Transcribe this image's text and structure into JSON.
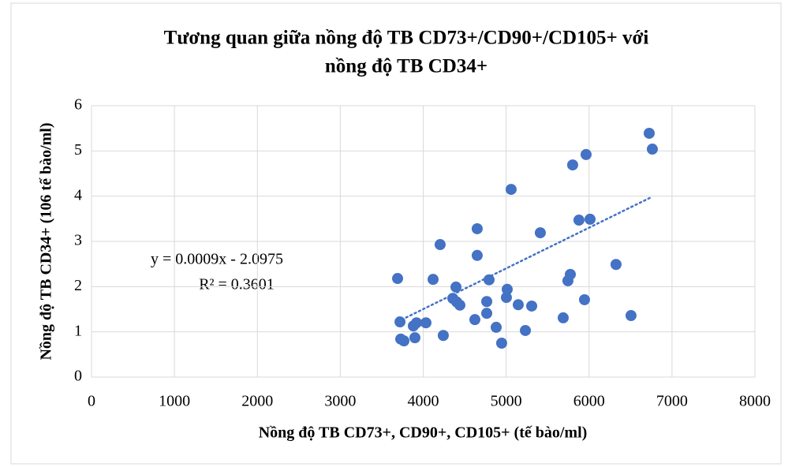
{
  "chart_data": {
    "type": "scatter",
    "title": [
      "Tương quan giữa nồng độ TB CD73+/CD90+/CD105+ với",
      "nồng độ TB CD34+"
    ],
    "x_label": "Nồng độ TB CD73+, CD90+, CD105+ (tế bào/ml)",
    "y_label": "Nồng độ TB CD34+ (106 tế bào/ml)",
    "annotation": [
      "y = 0.0009x - 2.0975",
      "R² = 0.3601"
    ],
    "trendline": {
      "slope": 0.0009,
      "intercept": -2.0975
    },
    "color": "#4472c4",
    "grid": true,
    "xlim": [
      0,
      8000
    ],
    "xticks": [
      0,
      1000,
      2000,
      3000,
      4000,
      5000,
      6000,
      7000,
      8000
    ],
    "ylim": [
      0,
      6
    ],
    "yticks": [
      0,
      1,
      2,
      3,
      4,
      5,
      6
    ],
    "x": [
      3691,
      3720,
      3729,
      3767,
      3881,
      3900,
      3919,
      4033,
      4119,
      4204,
      4242,
      4357,
      4395,
      4404,
      4442,
      4623,
      4651,
      4651,
      4766,
      4766,
      4794,
      4880,
      4946,
      5003,
      5013,
      5060,
      5146,
      5232,
      5308,
      5412,
      5688,
      5745,
      5774,
      5802,
      5878,
      5945,
      5964,
      6012,
      6325,
      6506,
      6725,
      6763
    ],
    "values": [
      2.18,
      1.22,
      0.84,
      0.8,
      1.13,
      0.87,
      1.2,
      1.2,
      2.16,
      2.93,
      0.92,
      1.74,
      1.99,
      1.66,
      1.59,
      1.27,
      2.69,
      3.28,
      1.67,
      1.41,
      2.15,
      1.1,
      0.75,
      1.76,
      1.94,
      4.15,
      1.6,
      1.03,
      1.57,
      3.19,
      1.31,
      2.13,
      2.27,
      4.69,
      3.47,
      1.71,
      4.92,
      3.49,
      2.49,
      1.36,
      5.39,
      5.04
    ]
  }
}
